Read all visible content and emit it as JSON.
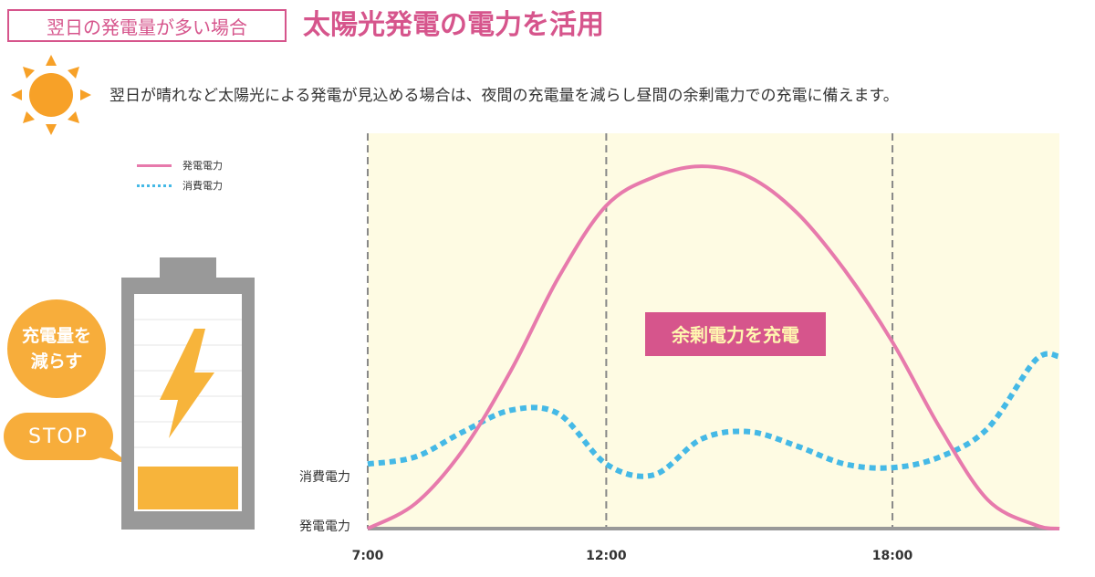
{
  "header": {
    "tag": "翌日の発電量が多い場合",
    "title": "太陽光発電の電力を活用"
  },
  "description": "翌日が晴れなど太陽光による発電が見込める場合は、夜間の充電量を減らし昼間の余剰電力での充電に備えます。",
  "icons": {
    "sun": "sun-icon",
    "bolt": "lightning-bolt-icon",
    "battery": "battery-icon"
  },
  "battery": {
    "bubble_line1": "充電量を",
    "bubble_line2": "減らす",
    "stop_label": "STOP",
    "charge_level": 0.1,
    "colors": {
      "frame": "#999999",
      "fill": "#f7b43b",
      "bolt": "#f7b43b",
      "bubble": "#f7ad3b"
    }
  },
  "chart_data": {
    "type": "line",
    "legend": [
      {
        "name": "発電電力",
        "style": "solid",
        "color": "#e77aac"
      },
      {
        "name": "消費電力",
        "style": "dotted",
        "color": "#45b9e6"
      }
    ],
    "y_labels": [
      "消費電力",
      "発電電力"
    ],
    "x_ticks": [
      {
        "label": "7:00",
        "hour": 7
      },
      {
        "label": "12:00",
        "hour": 12
      },
      {
        "label": "18:00",
        "hour": 18
      }
    ],
    "xlim": [
      7,
      21.5
    ],
    "ylim": [
      0,
      100
    ],
    "annotation": "余剰電力を充電",
    "background_color": "#fefbe3",
    "series": [
      {
        "name": "発電電力",
        "x": [
          7,
          8,
          9,
          10,
          11,
          12,
          13,
          14,
          15,
          16,
          17,
          18,
          19,
          20,
          21,
          21.5
        ],
        "y": [
          0,
          7,
          22,
          44,
          70,
          90,
          98,
          101,
          98,
          88,
          72,
          52,
          28,
          8,
          1,
          0
        ]
      },
      {
        "name": "消費電力",
        "x": [
          7,
          8,
          9,
          10,
          11,
          12,
          13,
          14,
          15,
          16,
          17,
          18,
          19,
          20,
          21,
          21.5
        ],
        "y": [
          18,
          20,
          27,
          33,
          32,
          18,
          15,
          25,
          27,
          23,
          18,
          17,
          20,
          28,
          47,
          48
        ]
      }
    ]
  }
}
